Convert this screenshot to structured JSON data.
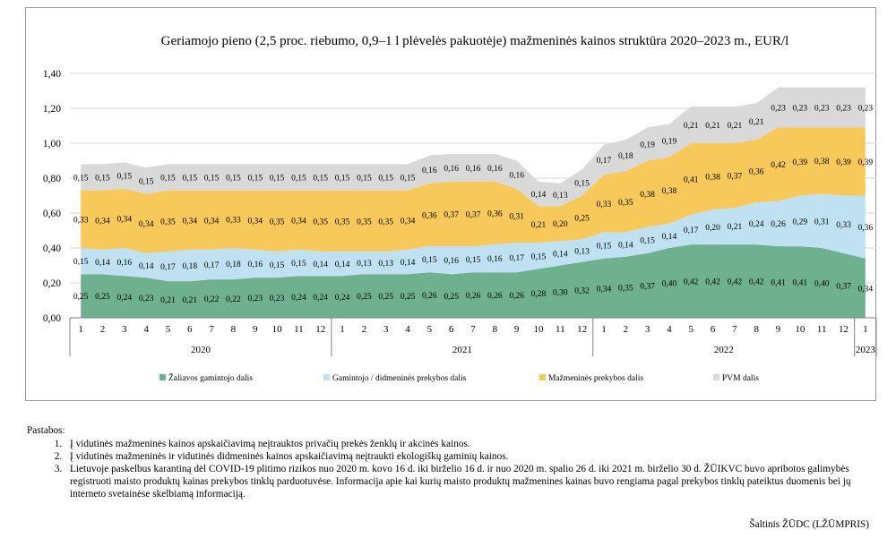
{
  "chart_data": {
    "type": "area",
    "title": "Geriamojo pieno (2,5 proc. riebumo, 0,9–1 l plėvelės pakuotėje) mažmeninės kainos struktūra 2020–2023 m., EUR/l",
    "ylim": [
      0,
      1.4
    ],
    "y_ticks": [
      "0,00",
      "0,20",
      "0,40",
      "0,60",
      "0,80",
      "1,00",
      "1,20",
      "1,40"
    ],
    "grid": true,
    "legend_position": "bottom",
    "x": [
      "1",
      "2",
      "3",
      "4",
      "5",
      "6",
      "7",
      "8",
      "9",
      "10",
      "11",
      "12",
      "1",
      "2",
      "3",
      "4",
      "5",
      "6",
      "7",
      "8",
      "9",
      "10",
      "11",
      "12",
      "1",
      "2",
      "3",
      "4",
      "5",
      "6",
      "7",
      "8",
      "9",
      "10",
      "11",
      "12",
      "1"
    ],
    "years": [
      {
        "label": "2020",
        "start": 0,
        "end": 11
      },
      {
        "label": "2021",
        "start": 12,
        "end": 23
      },
      {
        "label": "2022",
        "start": 24,
        "end": 35
      },
      {
        "label": "2023",
        "start": 36,
        "end": 36
      }
    ],
    "series": [
      {
        "name": "Žaliavos gamintojo dalis",
        "color": "#6fb08e",
        "values": [
          0.25,
          0.25,
          0.24,
          0.23,
          0.21,
          0.21,
          0.22,
          0.22,
          0.23,
          0.23,
          0.24,
          0.24,
          0.24,
          0.25,
          0.25,
          0.25,
          0.26,
          0.25,
          0.26,
          0.26,
          0.26,
          0.28,
          0.3,
          0.32,
          0.34,
          0.35,
          0.37,
          0.4,
          0.42,
          0.42,
          0.42,
          0.42,
          0.41,
          0.41,
          0.4,
          0.37,
          0.34
        ],
        "labels": [
          "0,25",
          "0,25",
          "0,24",
          "0,23",
          "0,21",
          "0,21",
          "0,22",
          "0,22",
          "0,23",
          "0,23",
          "0,24",
          "0,24",
          "0,24",
          "0,25",
          "0,25",
          "0,25",
          "0,26",
          "0,25",
          "0,26",
          "0,26",
          "0,26",
          "0,28",
          "0,30",
          "0,32",
          "0,34",
          "0,35",
          "0,37",
          "0,40",
          "0,42",
          "0,42",
          "0,42",
          "0,42",
          "0,41",
          "0,41",
          "0,40",
          "0,37",
          "0,34"
        ]
      },
      {
        "name": "Gamintojo / didmeninės prekybos dalis",
        "color": "#bfe1f2",
        "values": [
          0.15,
          0.14,
          0.16,
          0.14,
          0.17,
          0.18,
          0.17,
          0.18,
          0.16,
          0.15,
          0.15,
          0.14,
          0.14,
          0.13,
          0.13,
          0.14,
          0.15,
          0.16,
          0.15,
          0.16,
          0.17,
          0.15,
          0.14,
          0.13,
          0.15,
          0.14,
          0.15,
          0.14,
          0.17,
          0.2,
          0.21,
          0.24,
          0.26,
          0.29,
          0.31,
          0.33,
          0.36
        ],
        "labels": [
          "0,15",
          "0,14",
          "0,16",
          "0,14",
          "0,17",
          "0,18",
          "0,17",
          "0,18",
          "0,16",
          "0,15",
          "0,15",
          "0,14",
          "0,14",
          "0,13",
          "0,13",
          "0,14",
          "0,15",
          "0,16",
          "0,15",
          "0,16",
          "0,17",
          "0,15",
          "0,14",
          "0,13",
          "0,15",
          "0,14",
          "0,15",
          "0,14",
          "0,17",
          "0,20",
          "0,21",
          "0,24",
          "0,26",
          "0,29",
          "0,31",
          "0,33",
          "0,36"
        ]
      },
      {
        "name": "Mažmeninės prekybos dalis",
        "color": "#f7c85a",
        "values": [
          0.33,
          0.34,
          0.34,
          0.34,
          0.35,
          0.34,
          0.34,
          0.33,
          0.34,
          0.35,
          0.34,
          0.35,
          0.35,
          0.35,
          0.35,
          0.34,
          0.36,
          0.37,
          0.37,
          0.36,
          0.31,
          0.21,
          0.2,
          0.25,
          0.33,
          0.35,
          0.38,
          0.38,
          0.41,
          0.38,
          0.37,
          0.36,
          0.42,
          0.39,
          0.38,
          0.39,
          0.39
        ],
        "labels": [
          "0,33",
          "0,34",
          "0,34",
          "0,34",
          "0,35",
          "0,34",
          "0,34",
          "0,33",
          "0,34",
          "0,35",
          "0,34",
          "0,35",
          "0,35",
          "0,35",
          "0,35",
          "0,34",
          "0,36",
          "0,37",
          "0,37",
          "0,36",
          "0,31",
          "0,21",
          "0,20",
          "0,25",
          "0,33",
          "0,35",
          "0,38",
          "0,38",
          "0,41",
          "0,38",
          "0,37",
          "0,36",
          "0,42",
          "0,39",
          "0,38",
          "0,39",
          "0,39"
        ]
      },
      {
        "name": "PVM dalis",
        "color": "#d9d9d9",
        "values": [
          0.15,
          0.15,
          0.15,
          0.15,
          0.15,
          0.15,
          0.15,
          0.15,
          0.15,
          0.15,
          0.15,
          0.15,
          0.15,
          0.15,
          0.15,
          0.15,
          0.16,
          0.16,
          0.16,
          0.16,
          0.16,
          0.14,
          0.13,
          0.15,
          0.17,
          0.18,
          0.19,
          0.19,
          0.21,
          0.21,
          0.21,
          0.21,
          0.23,
          0.23,
          0.23,
          0.23,
          0.23
        ],
        "labels": [
          "0,15",
          "0,15",
          "0,15",
          "0,15",
          "0,15",
          "0,15",
          "0,15",
          "0,15",
          "0,15",
          "0,15",
          "0,15",
          "0,15",
          "0,15",
          "0,15",
          "0,15",
          "0,15",
          "0,16",
          "0,16",
          "0,16",
          "0,16",
          "0,16",
          "0,14",
          "0,13",
          "0,15",
          "0,17",
          "0,18",
          "0,19",
          "0,19",
          "0,21",
          "0,21",
          "0,21",
          "0,21",
          "0,23",
          "0,23",
          "0,23",
          "0,23",
          "0,23"
        ]
      }
    ]
  },
  "notes": {
    "heading": "Pastabos:",
    "items": [
      "Į vidutinės mažmeninės kainos apskaičiavimą neįtrauktos privačių prekės ženklų ir akcinės kainos.",
      "Į vidutinės mažmeninės ir vidutinės didmeninės kainos apskaičiavimą neįtraukti ekologiškų gaminių kainos.",
      "Lietuvoje paskelbus karantiną dėl COVID-19 plitimo rizikos nuo 2020 m. kovo 16 d. iki birželio 16 d. ir nuo 2020 m. spalio 26 d. iki 2021 m. birželio 30 d. ŽŪIKVC buvo apribotos galimybės registruoti maisto produktų kainas prekybos tinklų parduotuvėse. Informacija apie kai kurių maisto produktų mažmenines kainas buvo rengiama pagal prekybos tinklų pateiktus duomenis bei jų interneto svetainėse skelbiamą informaciją."
    ]
  },
  "source": "Šaltinis ŽŪDC (LŽŪMPRIS)"
}
